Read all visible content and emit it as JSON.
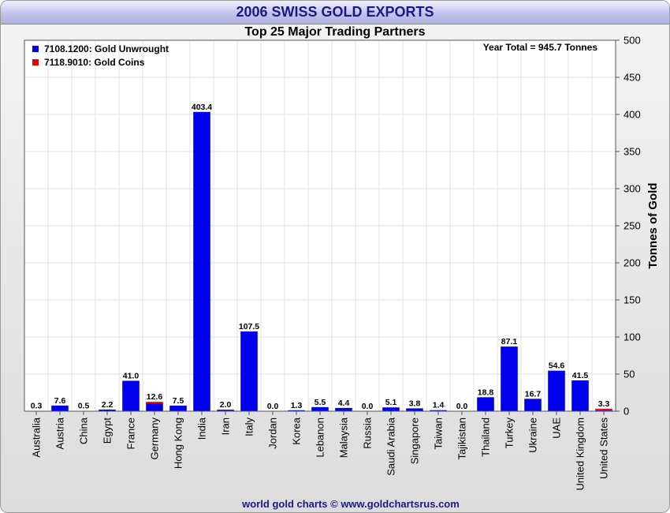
{
  "header": {
    "title": "2006 SWISS GOLD EXPORTS"
  },
  "footer": {
    "credit": "world gold charts © www.goldchartsrus.com"
  },
  "chart_data": {
    "type": "bar",
    "title": "Top 25 Major Trading Partners",
    "annotation": "Year Total = 945.7 Tonnes",
    "ylabel": "Tonnes of Gold",
    "xlabel": "",
    "ylim": [
      0,
      500
    ],
    "yticks": [
      0,
      50,
      100,
      150,
      200,
      250,
      300,
      350,
      400,
      450,
      500
    ],
    "grid": true,
    "legend_position": "top-left",
    "stacked": true,
    "categories": [
      "Australia",
      "Austria",
      "China",
      "Egypt",
      "France",
      "Germany",
      "Hong Kong",
      "India",
      "Iran",
      "Italy",
      "Jordan",
      "Korea",
      "Lebanon",
      "Malaysia",
      "Russia",
      "Saudi Arabia",
      "Singapore",
      "Taiwan",
      "Tajikistan",
      "Thailand",
      "Turkey",
      "Ukraine",
      "UAE",
      "United Kingdom",
      "United States"
    ],
    "series": [
      {
        "name": "7108.1200: Gold Unwrought",
        "color": "#0000ee",
        "values": [
          0.3,
          7.6,
          0.5,
          2.2,
          41.0,
          10.6,
          7.5,
          403.4,
          2.0,
          107.5,
          0.0,
          1.3,
          5.5,
          4.4,
          0.0,
          5.1,
          3.8,
          1.4,
          0.0,
          18.8,
          87.1,
          16.7,
          54.6,
          41.5,
          1.3
        ]
      },
      {
        "name": "7118.9010: Gold Coins",
        "color": "#ee0000",
        "values": [
          0,
          0,
          0,
          0,
          0,
          2.0,
          0,
          0,
          0,
          0,
          0,
          0,
          0,
          0,
          0,
          0,
          0,
          0,
          0,
          0,
          0,
          0,
          0,
          0,
          2.0
        ]
      }
    ],
    "totals": [
      "0.3",
      "7.6",
      "0.5",
      "2.2",
      "41.0",
      "12.6",
      "7.5",
      "403.4",
      "2.0",
      "107.5",
      "0.0",
      "1.3",
      "5.5",
      "4.4",
      "0.0",
      "5.1",
      "3.8",
      "1.4",
      "0.0",
      "18.8",
      "87.1",
      "16.7",
      "54.6",
      "41.5",
      "3.3"
    ]
  }
}
